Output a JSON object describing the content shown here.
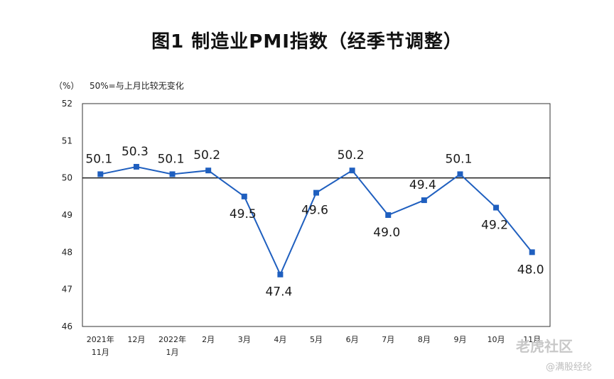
{
  "chart_data": {
    "type": "line",
    "title": "图1  制造业PMI指数（经季节调整）",
    "unit_label": "（%）",
    "reference_note": "50%=与上月比较无变化",
    "reference_value": 50,
    "ylim": [
      46,
      52
    ],
    "yticks": [
      "46",
      "47",
      "48",
      "49",
      "50",
      "51",
      "52"
    ],
    "categories": [
      [
        "2021年",
        "11月"
      ],
      [
        "12月"
      ],
      [
        "2022年",
        "1月"
      ],
      [
        "2月"
      ],
      [
        "3月"
      ],
      [
        "4月"
      ],
      [
        "5月"
      ],
      [
        "6月"
      ],
      [
        "7月"
      ],
      [
        "8月"
      ],
      [
        "9月"
      ],
      [
        "10月"
      ],
      [
        "11月"
      ]
    ],
    "series": [
      {
        "values": [
          50.1,
          50.3,
          50.1,
          50.2,
          49.5,
          47.4,
          49.6,
          50.2,
          49.0,
          49.4,
          50.1,
          49.2,
          48.0
        ],
        "labels": [
          "50.1",
          "50.3",
          "50.1",
          "50.2",
          "49.5",
          "47.4",
          "49.6",
          "50.2",
          "49.0",
          "49.4",
          "50.1",
          "49.2",
          "48.0"
        ],
        "label_positions": [
          "above",
          "above",
          "above",
          "above",
          "below",
          "below",
          "below",
          "above",
          "below",
          "above",
          "above",
          "below",
          "below"
        ],
        "color": "#1f5fbf"
      }
    ],
    "grid": false
  },
  "watermark": {
    "line1": "老虎社区",
    "line2": "@满股经纶"
  }
}
